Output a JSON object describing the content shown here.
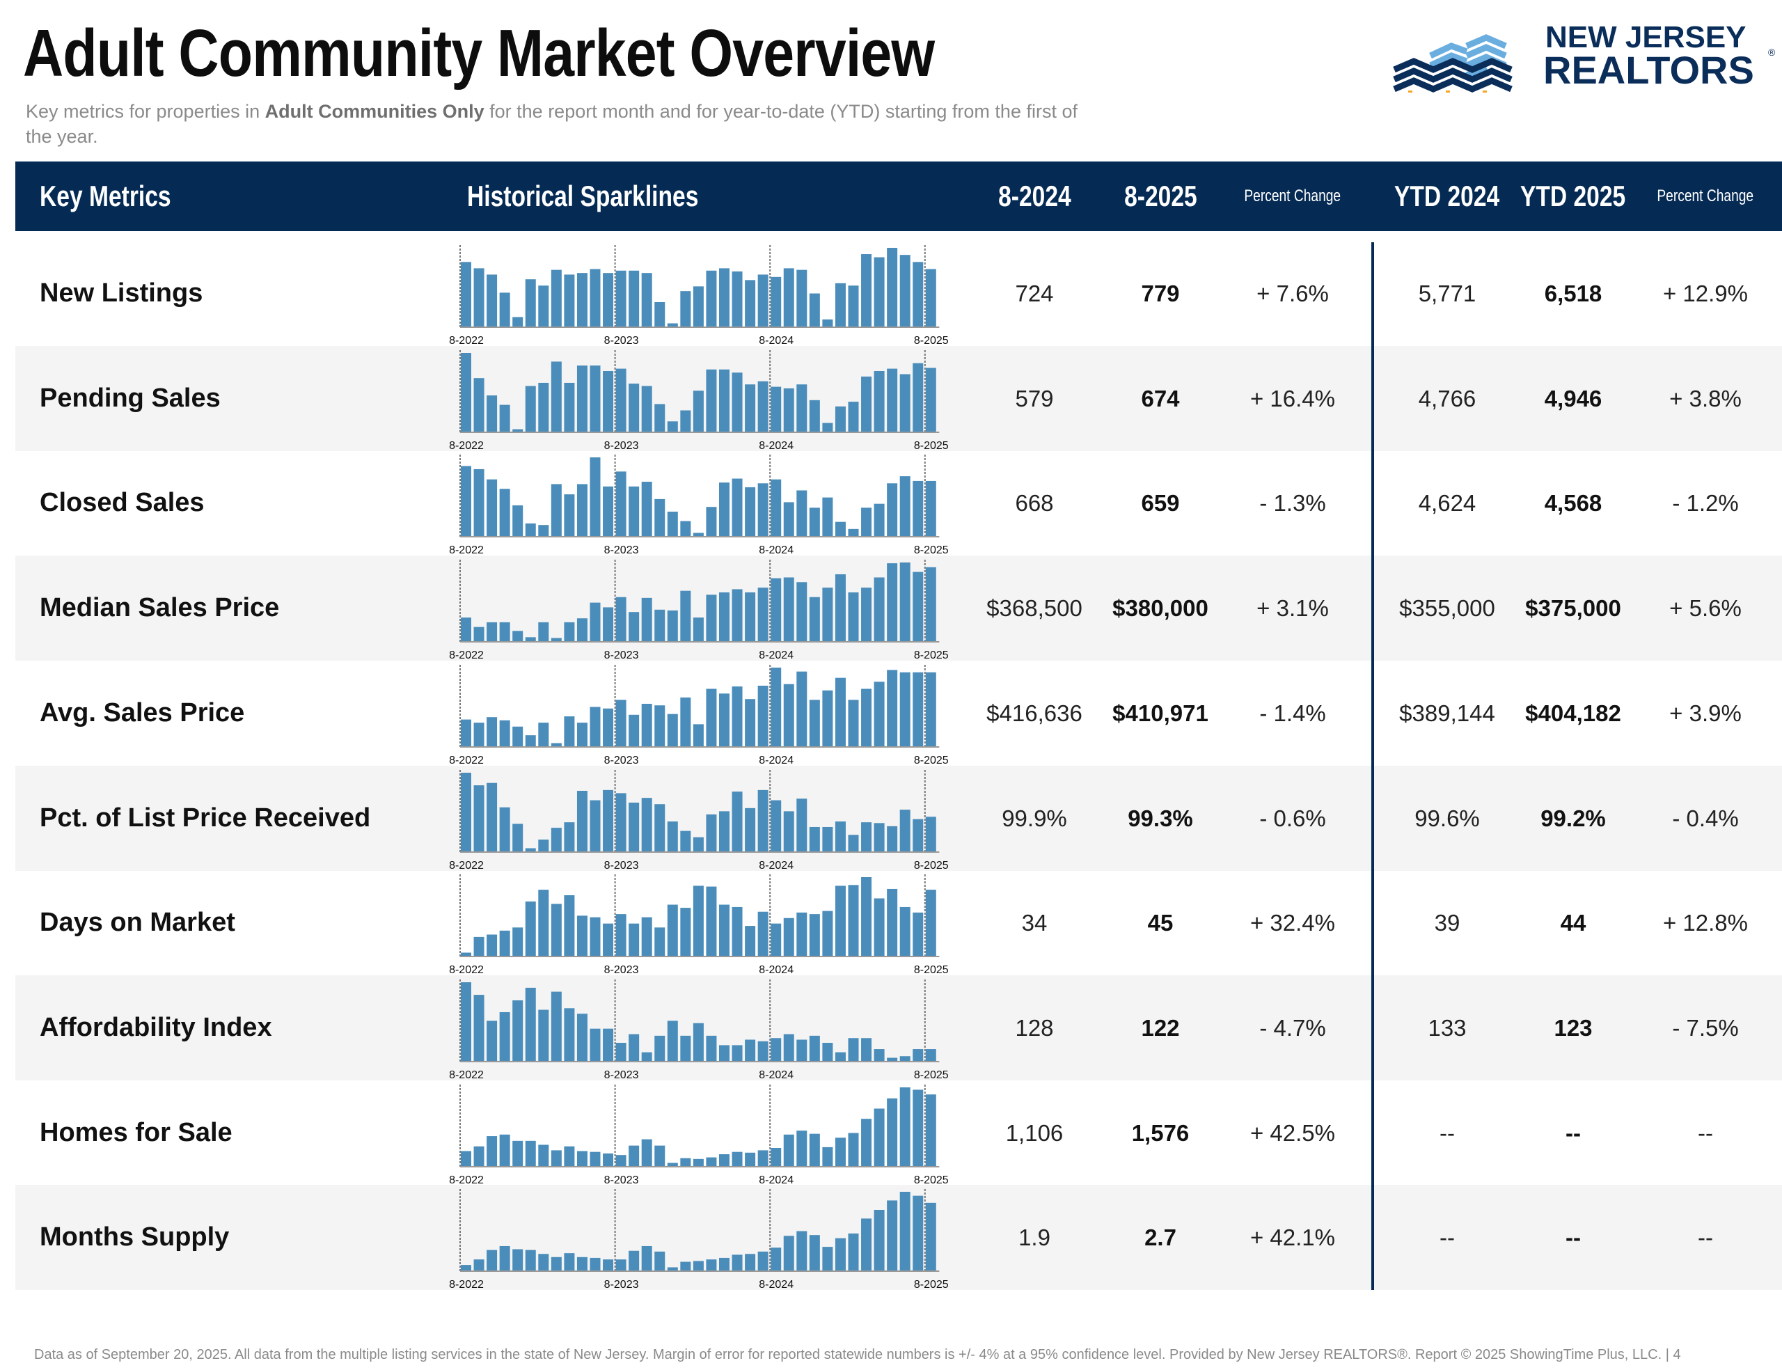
{
  "title": "Adult Community Market Overview",
  "subtitle": {
    "pre": "Key metrics for properties in ",
    "bold": "Adult Communities Only",
    "post": " for the report month and for year-to-date (YTD) starting from the first of the year."
  },
  "logo": {
    "line1": "NEW JERSEY",
    "line2": "REALTORS",
    "mark": "®"
  },
  "colors": {
    "header_bg": "#052b55",
    "bar": "#4a8dbb",
    "alt_row": "#f4f4f4",
    "logo_dark": "#0a2d5a",
    "logo_light": "#6aaee0",
    "logo_accent": "#f5a623"
  },
  "header": {
    "key_metrics": "Key Metrics",
    "sparklines": "Historical Sparklines",
    "m_prev": "8-2024",
    "m_curr": "8-2025",
    "pct": "Percent Change",
    "ytd_prev": "YTD 2024",
    "ytd_curr": "YTD 2025",
    "ytd_pct": "Percent Change"
  },
  "spark_labels": [
    "8-2022",
    "8-2023",
    "8-2024",
    "8-2025"
  ],
  "rows": [
    {
      "label": "New Listings",
      "m_prev": "724",
      "m_curr": "779",
      "pct": "+ 7.6%",
      "ytd_prev": "5,771",
      "ytd_curr": "6,518",
      "ytd_pct": "+ 12.9%",
      "sparkline": [
        82,
        74,
        66,
        43,
        12,
        60,
        52,
        72,
        66,
        68,
        73,
        68,
        71,
        71,
        68,
        31,
        4,
        45,
        51,
        71,
        74,
        70,
        59,
        66,
        63,
        74,
        72,
        42,
        9,
        55,
        52,
        92,
        88,
        100,
        91,
        82,
        73
      ]
    },
    {
      "label": "Pending Sales",
      "m_prev": "579",
      "m_curr": "674",
      "pct": "+ 16.4%",
      "ytd_prev": "4,766",
      "ytd_curr": "4,946",
      "ytd_pct": "+ 3.8%",
      "sparkline": [
        100,
        68,
        46,
        34,
        3,
        58,
        62,
        89,
        62,
        84,
        84,
        77,
        80,
        61,
        58,
        35,
        13,
        27,
        52,
        79,
        79,
        75,
        60,
        64,
        57,
        55,
        60,
        40,
        11,
        32,
        38,
        70,
        77,
        80,
        73,
        87,
        81
      ]
    },
    {
      "label": "Closed Sales",
      "m_prev": "668",
      "m_curr": "659",
      "pct": "- 1.3%",
      "ytd_prev": "4,624",
      "ytd_curr": "4,568",
      "ytd_pct": "- 1.2%",
      "sparkline": [
        89,
        85,
        72,
        60,
        39,
        16,
        14,
        66,
        53,
        66,
        100,
        63,
        82,
        63,
        69,
        47,
        31,
        19,
        4,
        37,
        68,
        73,
        62,
        67,
        72,
        43,
        58,
        36,
        49,
        18,
        9,
        36,
        41,
        67,
        76,
        70,
        70
      ]
    },
    {
      "label": "Median Sales Price",
      "m_prev": "$368,500",
      "m_curr": "$380,000",
      "pct": "+ 3.1%",
      "ytd_prev": "$355,000",
      "ytd_curr": "$375,000",
      "ytd_pct": "+ 5.6%",
      "sparkline": [
        30,
        18,
        24,
        24,
        13,
        5,
        24,
        4,
        24,
        29,
        49,
        43,
        56,
        37,
        55,
        40,
        39,
        64,
        30,
        59,
        62,
        66,
        62,
        68,
        80,
        81,
        75,
        56,
        68,
        85,
        62,
        68,
        81,
        99,
        100,
        88,
        94
      ]
    },
    {
      "label": "Avg. Sales Price",
      "m_prev": "$416,636",
      "m_curr": "$410,971",
      "pct": "- 1.4%",
      "ytd_prev": "$389,144",
      "ytd_curr": "$404,182",
      "ytd_pct": "+ 3.9%",
      "sparkline": [
        34,
        30,
        37,
        33,
        25,
        14,
        30,
        4,
        38,
        30,
        50,
        48,
        59,
        40,
        54,
        52,
        41,
        62,
        28,
        73,
        67,
        76,
        60,
        77,
        100,
        79,
        95,
        59,
        71,
        87,
        59,
        73,
        82,
        97,
        94,
        94,
        94
      ]
    },
    {
      "label": "Pct. of List Price Received",
      "m_prev": "99.9%",
      "m_curr": "99.3%",
      "pct": "- 0.6%",
      "ytd_prev": "99.6%",
      "ytd_curr": "99.2%",
      "ytd_pct": "- 0.4%",
      "sparkline": [
        100,
        84,
        87,
        56,
        35,
        4,
        15,
        30,
        37,
        77,
        65,
        78,
        74,
        62,
        68,
        60,
        38,
        26,
        18,
        47,
        51,
        76,
        55,
        78,
        65,
        51,
        67,
        31,
        31,
        38,
        21,
        37,
        36,
        32,
        53,
        41,
        44
      ]
    },
    {
      "label": "Days on Market",
      "m_prev": "34",
      "m_curr": "45",
      "pct": "+ 32.4%",
      "ytd_prev": "39",
      "ytd_curr": "44",
      "ytd_pct": "+ 12.8%",
      "sparkline": [
        4,
        24,
        27,
        32,
        36,
        69,
        84,
        66,
        77,
        51,
        49,
        41,
        53,
        41,
        49,
        36,
        65,
        61,
        89,
        88,
        65,
        62,
        38,
        56,
        41,
        48,
        55,
        53,
        57,
        89,
        90,
        100,
        73,
        85,
        62,
        55,
        84
      ]
    },
    {
      "label": "Affordability Index",
      "m_prev": "128",
      "m_curr": "122",
      "pct": "- 4.7%",
      "ytd_prev": "133",
      "ytd_curr": "123",
      "ytd_pct": "- 7.5%",
      "sparkline": [
        100,
        84,
        51,
        62,
        77,
        93,
        65,
        88,
        67,
        60,
        41,
        41,
        23,
        34,
        11,
        32,
        51,
        32,
        48,
        32,
        20,
        20,
        27,
        25,
        29,
        34,
        27,
        32,
        23,
        11,
        29,
        29,
        15,
        4,
        6,
        15,
        15
      ]
    },
    {
      "label": "Homes for Sale",
      "m_prev": "1,106",
      "m_curr": "1,576",
      "pct": "+ 42.5%",
      "ytd_prev": "--",
      "ytd_curr": "--",
      "ytd_pct": "--",
      "sparkline": [
        19,
        25,
        38,
        40,
        32,
        32,
        27,
        20,
        25,
        19,
        18,
        16,
        14,
        26,
        34,
        26,
        4,
        10,
        9,
        11,
        15,
        18,
        17,
        20,
        23,
        40,
        45,
        41,
        24,
        36,
        42,
        60,
        73,
        86,
        100,
        97,
        91
      ]
    },
    {
      "label": "Months Supply",
      "m_prev": "1.9",
      "m_curr": "2.7",
      "pct": "+ 42.1%",
      "ytd_prev": "--",
      "ytd_curr": "--",
      "ytd_pct": "--",
      "sparkline": [
        7,
        14,
        26,
        31,
        27,
        26,
        21,
        17,
        22,
        17,
        16,
        14,
        14,
        25,
        31,
        24,
        4,
        11,
        12,
        14,
        16,
        20,
        21,
        24,
        29,
        44,
        50,
        45,
        30,
        41,
        47,
        66,
        77,
        89,
        100,
        95,
        86
      ]
    }
  ],
  "footer": "Data as of September 20, 2025. All data from the multiple listing services in the state of New Jersey. Margin of error for reported statewide numbers is +/- 4% at a 95% confidence level. Provided by New Jersey REALTORS®. Report © 2025 ShowingTime Plus, LLC. | 4"
}
